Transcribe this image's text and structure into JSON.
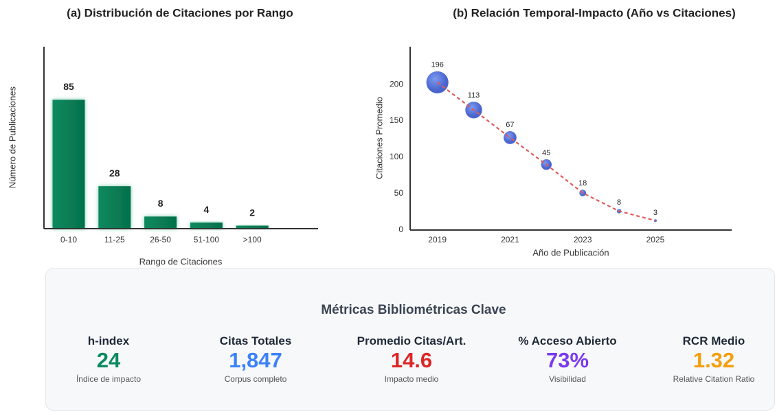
{
  "chart_data": [
    {
      "type": "bar",
      "title": "(a) Distribución de Citaciones por Rango",
      "categories": [
        "0-10",
        "11-25",
        "26-50",
        "51-100",
        ">100"
      ],
      "values": [
        85,
        28,
        8,
        4,
        2
      ],
      "color": "#0b8a5f",
      "xlabel": "Rango de Citaciones",
      "ylabel": "Número de Publicaciones",
      "ylim": [
        0,
        120
      ]
    },
    {
      "type": "scatter",
      "title": "(b) Relación Temporal-Impacto (Año vs Citaciones)",
      "x": [
        2019,
        2020,
        2021,
        2022,
        2023,
        2024,
        2025
      ],
      "values": [
        203,
        165,
        127,
        90,
        51,
        26,
        13
      ],
      "sizes": [
        196,
        113,
        67,
        45,
        18,
        8,
        3
      ],
      "color": "#4169e1",
      "line_color": "#e05a5a",
      "xlabel": "Año de Publicación",
      "ylabel": "Citaciones Promedio",
      "xlim": [
        2018.25,
        2027.1
      ],
      "xticks": [
        2019,
        2021,
        2023,
        2025
      ],
      "ylim": [
        0,
        252
      ],
      "yticks": [
        0,
        50,
        100,
        150,
        200
      ]
    }
  ],
  "metrics": {
    "title": "Métricas Bibliométricas Clave",
    "items": [
      {
        "label": "h-index",
        "value": "24",
        "description": "Índice de impacto",
        "color": "#0b8a5f"
      },
      {
        "label": "Citas Totales",
        "value": "1,847",
        "description": "Corpus completo",
        "color": "#3b82f6"
      },
      {
        "label": "Promedio Citas/Art.",
        "value": "14.6",
        "description": "Impacto medio",
        "color": "#dc2626"
      },
      {
        "label": "% Acceso Abierto",
        "value": "73%",
        "description": "Visibilidad",
        "color": "#7c3aed"
      },
      {
        "label": "RCR Medio",
        "value": "1.32",
        "description": "Relative Citation Ratio",
        "color": "#f59e0b"
      }
    ]
  }
}
